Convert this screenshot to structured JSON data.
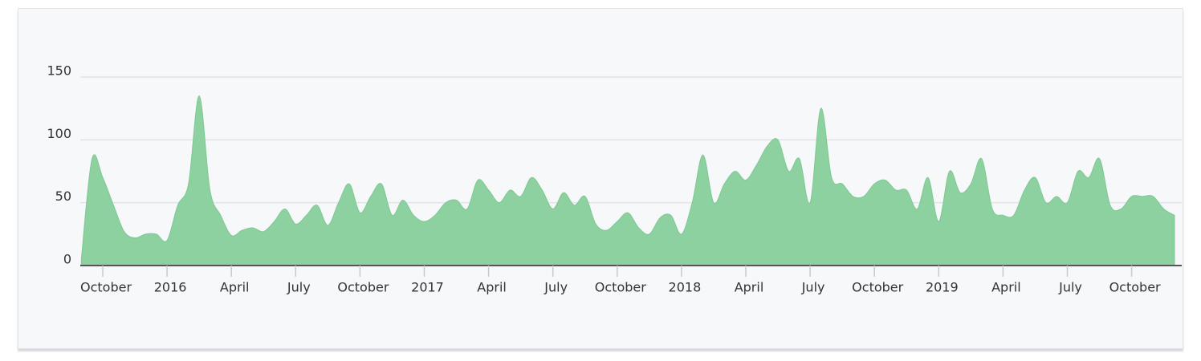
{
  "chart_data": {
    "type": "area",
    "values": [
      5,
      85,
      70,
      48,
      27,
      22,
      25,
      25,
      20,
      48,
      65,
      135,
      60,
      40,
      24,
      28,
      30,
      27,
      35,
      45,
      33,
      40,
      48,
      32,
      50,
      65,
      42,
      55,
      65,
      40,
      52,
      40,
      35,
      40,
      50,
      52,
      45,
      68,
      60,
      50,
      60,
      55,
      70,
      60,
      45,
      58,
      48,
      55,
      33,
      28,
      35,
      42,
      30,
      25,
      38,
      40,
      25,
      50,
      88,
      50,
      65,
      75,
      68,
      80,
      95,
      100,
      75,
      85,
      50,
      125,
      70,
      65,
      55,
      55,
      65,
      68,
      60,
      60,
      45,
      70,
      35,
      75,
      58,
      65,
      85,
      45,
      40,
      40,
      60,
      70,
      50,
      55,
      50,
      75,
      70,
      85,
      48,
      45,
      55,
      55,
      55,
      45,
      40
    ],
    "color": "#8ed1a0",
    "xlim": [
      "2015-09",
      "2019-12"
    ],
    "xticks": [
      {
        "value": "2015-10",
        "label": "October"
      },
      {
        "value": "2016-01",
        "label": "2016"
      },
      {
        "value": "2016-04",
        "label": "April"
      },
      {
        "value": "2016-07",
        "label": "July"
      },
      {
        "value": "2016-10",
        "label": "October"
      },
      {
        "value": "2017-01",
        "label": "2017"
      },
      {
        "value": "2017-04",
        "label": "April"
      },
      {
        "value": "2017-07",
        "label": "July"
      },
      {
        "value": "2017-10",
        "label": "October"
      },
      {
        "value": "2018-01",
        "label": "2018"
      },
      {
        "value": "2018-04",
        "label": "April"
      },
      {
        "value": "2018-07",
        "label": "July"
      },
      {
        "value": "2018-10",
        "label": "October"
      },
      {
        "value": "2019-01",
        "label": "2019"
      },
      {
        "value": "2019-04",
        "label": "April"
      },
      {
        "value": "2019-07",
        "label": "July"
      },
      {
        "value": "2019-10",
        "label": "October"
      }
    ],
    "ylim": [
      0,
      150
    ],
    "yticks": [
      0,
      50,
      100,
      150
    ],
    "grid": true
  }
}
